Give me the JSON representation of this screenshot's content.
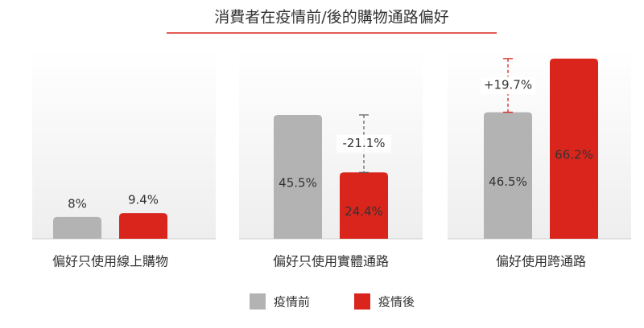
{
  "chart_data": {
    "type": "bar",
    "title": "消費者在疫情前/後的購物通路偏好",
    "categories": [
      "偏好只使用線上購物",
      "偏好只使用實體通路",
      "偏好使用跨通路"
    ],
    "series": [
      {
        "name": "疫情前",
        "color": "#b3b3b3",
        "values": [
          8,
          45.5,
          46.5
        ],
        "value_labels": [
          "8%",
          "45.5%",
          "46.5%"
        ]
      },
      {
        "name": "疫情後",
        "color": "#d9251c",
        "values": [
          9.4,
          24.4,
          66.2
        ],
        "value_labels": [
          "9.4%",
          "24.4%",
          "66.2%"
        ]
      }
    ],
    "annotations": [
      null,
      "-21.1%",
      "+19.7%"
    ],
    "ylim": [
      0,
      70
    ],
    "legend": "bottom"
  }
}
